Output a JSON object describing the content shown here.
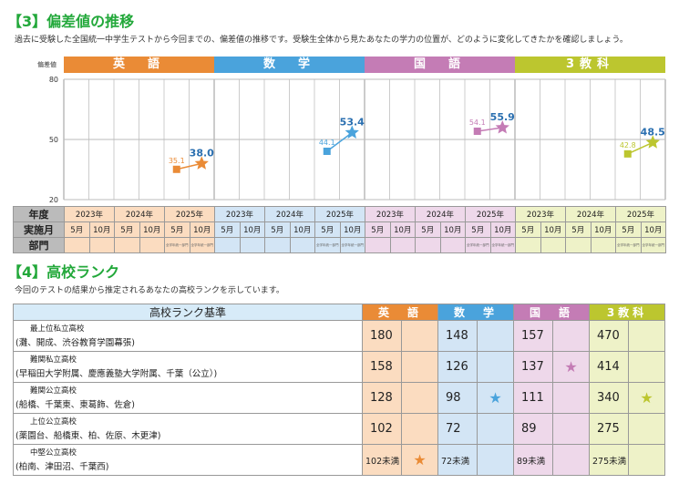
{
  "section3": {
    "title": "【3】偏差値の推移",
    "desc": "過去に受験した全国統一中学生テストから今回までの、偏差値の推移です。受験生全体から見たあなたの学力の位置が、どのように変化してきたかを確認しましょう。"
  },
  "chart_data": {
    "type": "line",
    "ylabel": "偏差値",
    "ylim": [
      20,
      80
    ],
    "yticks": [
      "80",
      "50",
      "20"
    ],
    "subjects": [
      {
        "name": "英　語",
        "color": "#ea8b36",
        "bg": "#fbdcc0",
        "values": [
          35.1,
          38.0
        ],
        "labels": [
          "35.1",
          "38.0"
        ]
      },
      {
        "name": "数　学",
        "color": "#4aa3dc",
        "bg": "#d3e5f5",
        "values": [
          44.1,
          53.4
        ],
        "labels": [
          "44.1",
          "53.4"
        ]
      },
      {
        "name": "国　語",
        "color": "#c47cb5",
        "bg": "#eed8ea",
        "values": [
          54.1,
          55.9
        ],
        "labels": [
          "54.1",
          "55.9"
        ]
      },
      {
        "name": "3教科",
        "color": "#bcc62f",
        "bg": "#eef2c8",
        "values": [
          42.8,
          48.5
        ],
        "labels": [
          "42.8",
          "48.5"
        ]
      }
    ],
    "years": [
      "2023年",
      "2024年",
      "2025年"
    ],
    "months": [
      "5月",
      "10月"
    ],
    "dept": "全学年統一部門",
    "row_labels": [
      "年度",
      "実施月",
      "部門"
    ]
  },
  "section4": {
    "title": "【4】高校ランク",
    "desc": "今回のテストの結果から推定されるあなたの高校ランクを示しています。",
    "header": "高校ランク基準",
    "rows": [
      {
        "name": "最上位私立高校",
        "schools": "(灘、開成、渋谷教育学園幕張)",
        "scores": [
          "180",
          "148",
          "157",
          "470"
        ],
        "star": -1
      },
      {
        "name": "難関私立高校",
        "schools": "(早稲田大学附属、慶應義塾大学附属、千葉（公立）)",
        "scores": [
          "158",
          "126",
          "137",
          "414"
        ],
        "star": 2
      },
      {
        "name": "難関公立高校",
        "schools": "(船橋、千葉東、東葛飾、佐倉)",
        "scores": [
          "128",
          "98",
          "111",
          "340"
        ],
        "star": [
          1,
          3
        ]
      },
      {
        "name": "上位公立高校",
        "schools": "(薬園台、船橋東、柏、佐原、木更津)",
        "scores": [
          "102",
          "72",
          "89",
          "275"
        ],
        "star": -1
      },
      {
        "name": "中堅公立高校",
        "schools": "(柏南、津田沼、千葉西)",
        "scores": [
          "102未満",
          "72未満",
          "89未満",
          "275未満"
        ],
        "star": 0
      }
    ]
  }
}
